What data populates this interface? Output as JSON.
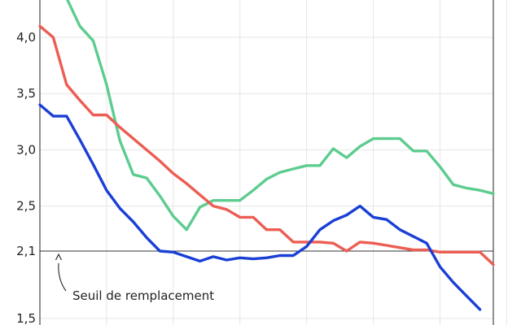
{
  "chart_data": {
    "type": "line",
    "title": "",
    "xlabel": "",
    "ylabel": "",
    "ylim": [
      1.5,
      4.3
    ],
    "xlim": [
      0,
      34
    ],
    "grid": true,
    "y_ticks": [
      {
        "value": 1.5,
        "label": "1,5"
      },
      {
        "value": 2.1,
        "label": "2,1"
      },
      {
        "value": 2.5,
        "label": "2,5"
      },
      {
        "value": 3.0,
        "label": "3,0"
      },
      {
        "value": 3.5,
        "label": "3,5"
      },
      {
        "value": 4.0,
        "label": "4,0"
      }
    ],
    "x_gridlines": [
      0,
      5,
      10,
      15,
      20,
      25,
      30,
      35
    ],
    "reference_line": {
      "value": 2.1,
      "label": "Seuil de remplacement"
    },
    "series": [
      {
        "color": "#5dcc8f",
        "x": [
          2,
          3,
          4,
          5,
          6,
          7,
          8,
          9,
          10,
          11,
          12,
          13,
          14,
          15,
          16,
          17,
          18,
          19,
          20,
          21,
          22,
          23,
          24,
          25,
          26,
          27,
          28,
          29,
          30,
          31,
          32,
          33,
          34
        ],
        "y": [
          4.35,
          4.1,
          3.97,
          3.58,
          3.08,
          2.78,
          2.75,
          2.59,
          2.41,
          2.29,
          2.49,
          2.55,
          2.55,
          2.55,
          2.64,
          2.74,
          2.8,
          2.83,
          2.86,
          2.86,
          3.01,
          2.93,
          3.03,
          3.1,
          3.1,
          3.1,
          2.99,
          2.99,
          2.85,
          2.69,
          2.66,
          2.64,
          2.61
        ]
      },
      {
        "color": "#ec5d53",
        "x": [
          0,
          1,
          2,
          3,
          4,
          5,
          6,
          7,
          8,
          9,
          10,
          11,
          12,
          13,
          14,
          15,
          16,
          17,
          18,
          19,
          20,
          21,
          22,
          23,
          24,
          25,
          26,
          27,
          28,
          29,
          30,
          31,
          32,
          33,
          34
        ],
        "y": [
          4.1,
          4.0,
          3.58,
          3.44,
          3.31,
          3.31,
          3.2,
          3.1,
          3.0,
          2.9,
          2.79,
          2.7,
          2.6,
          2.5,
          2.47,
          2.4,
          2.4,
          2.29,
          2.29,
          2.18,
          2.18,
          2.18,
          2.17,
          2.1,
          2.18,
          2.17,
          2.15,
          2.13,
          2.11,
          2.11,
          2.09,
          2.09,
          2.09,
          2.09,
          1.98
        ]
      },
      {
        "color": "#1a3fd6",
        "x": [
          0,
          1,
          2,
          3,
          4,
          5,
          6,
          7,
          8,
          9,
          10,
          11,
          12,
          13,
          14,
          15,
          16,
          17,
          18,
          19,
          20,
          21,
          22,
          23,
          24,
          25,
          26,
          27,
          28,
          29,
          30,
          31,
          32,
          33
        ],
        "y": [
          3.4,
          3.3,
          3.3,
          3.09,
          2.87,
          2.64,
          2.48,
          2.36,
          2.22,
          2.1,
          2.09,
          2.05,
          2.01,
          2.05,
          2.02,
          2.04,
          2.03,
          2.04,
          2.06,
          2.06,
          2.14,
          2.29,
          2.37,
          2.42,
          2.5,
          2.4,
          2.38,
          2.29,
          2.23,
          2.17,
          1.96,
          1.82,
          1.7,
          1.58
        ]
      }
    ]
  }
}
